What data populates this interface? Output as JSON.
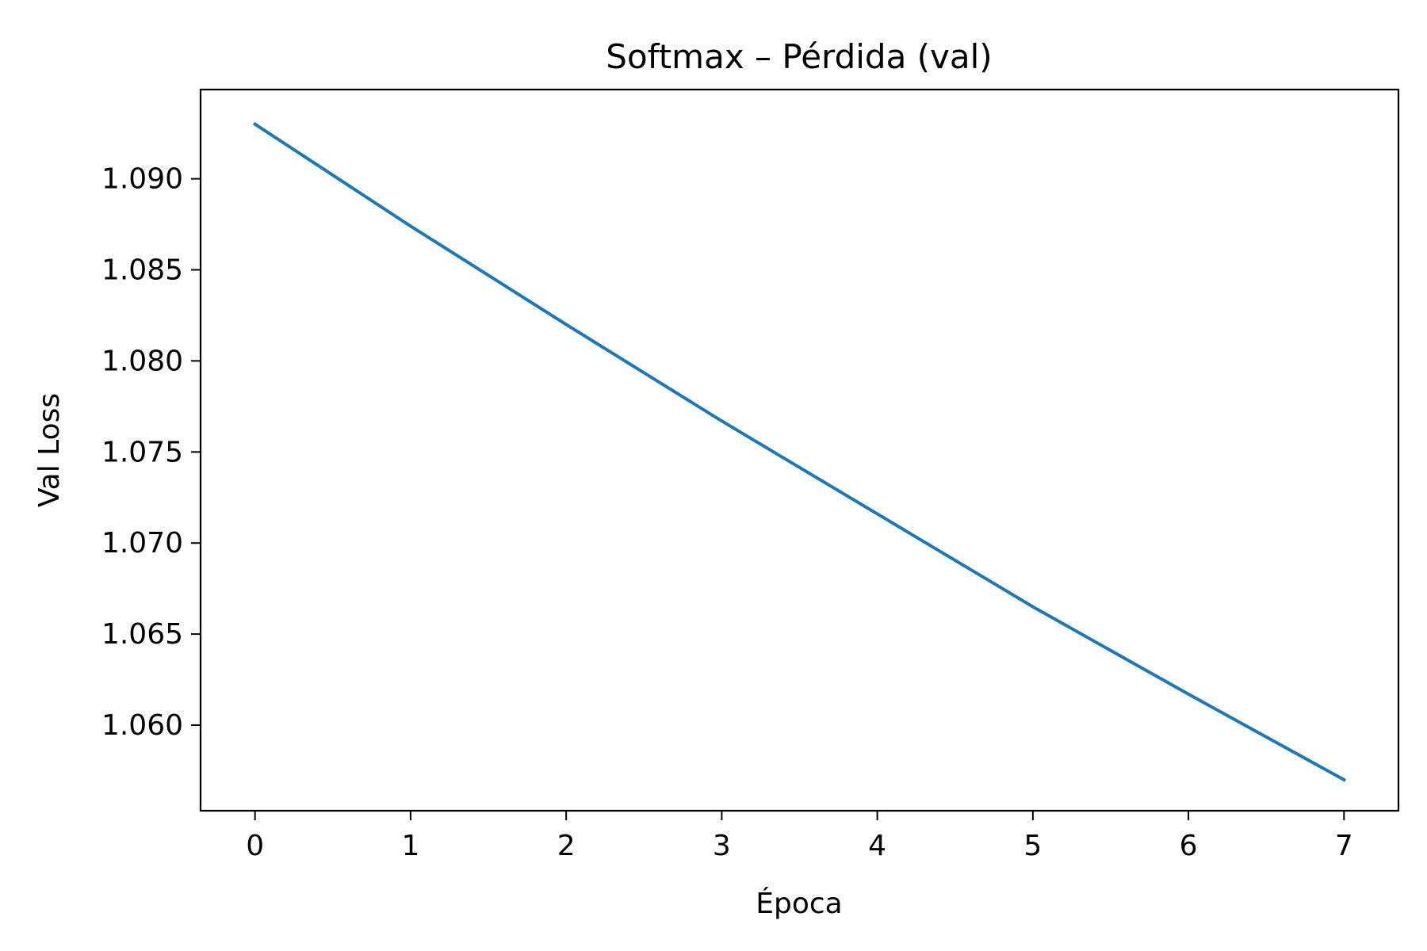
{
  "chart_data": {
    "type": "line",
    "title": "Softmax – Pérdida (val)",
    "xlabel": "Época",
    "ylabel": "Val Loss",
    "x": [
      0,
      1,
      2,
      3,
      4,
      5,
      6,
      7
    ],
    "series": [
      {
        "values": [
          1.093,
          1.0874,
          1.082,
          1.0767,
          1.0716,
          1.0665,
          1.0617,
          1.057
        ],
        "color": "#1f77b4"
      }
    ],
    "xlim": [
      -0.35,
      7.35
    ],
    "ylim": [
      1.0553,
      1.0949
    ],
    "xticks": [
      0,
      1,
      2,
      3,
      4,
      5,
      6,
      7
    ],
    "xtick_labels": [
      "0",
      "1",
      "2",
      "3",
      "4",
      "5",
      "6",
      "7"
    ],
    "yticks": [
      1.06,
      1.065,
      1.07,
      1.075,
      1.08,
      1.085,
      1.09
    ],
    "ytick_labels": [
      "1.060",
      "1.065",
      "1.070",
      "1.075",
      "1.080",
      "1.085",
      "1.090"
    ],
    "grid": false,
    "legend": false
  }
}
